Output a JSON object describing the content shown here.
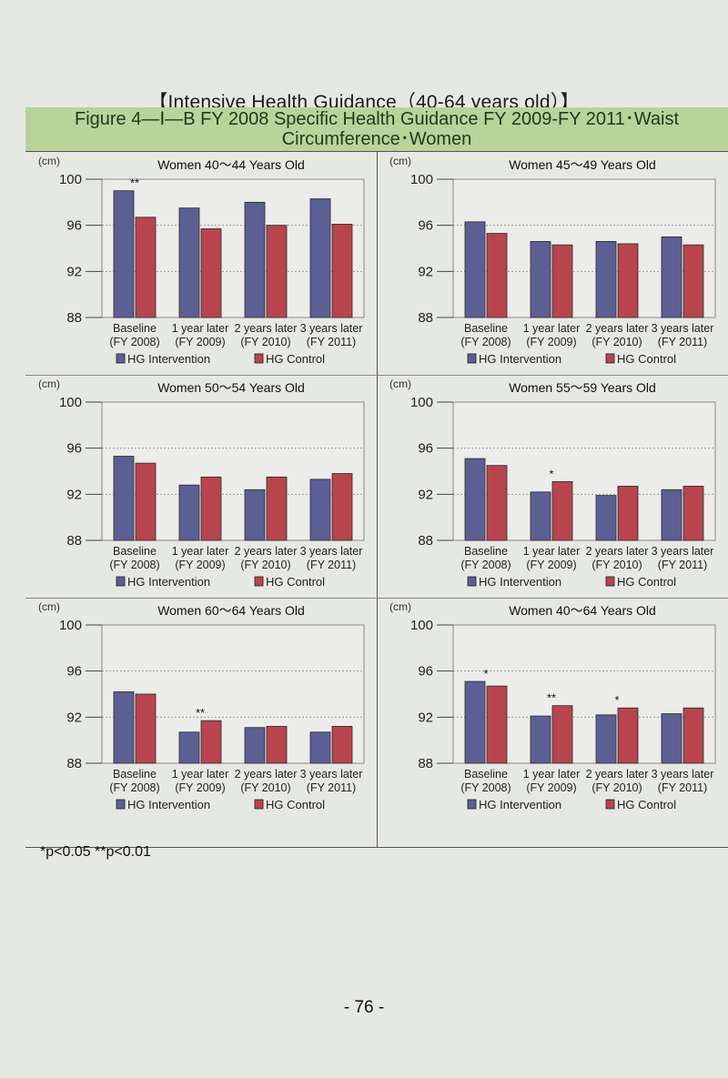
{
  "page_title": "【Intensive Health Guidance（40-64 years old）】",
  "figure_header": "Figure 4―Ⅰ―B  FY 2008 Specific Health Guidance FY 2009-FY 2011･Waist Circumference･Women",
  "footnote": "*p<0.05  **p<0.01",
  "page_number": "- 76 -",
  "colors": {
    "intervention": "#5b5f93",
    "control": "#b8444e",
    "panel_bg": "#ecedea"
  },
  "chart_data": [
    {
      "type": "bar",
      "title": "Women 40～44 Years Old",
      "ylabel": "(cm)",
      "ylim": [
        88,
        100
      ],
      "yticks": [
        "100",
        "96",
        "92",
        "88"
      ],
      "categories": [
        "Baseline",
        "1 year later",
        "2 years later",
        "3 years later"
      ],
      "category_sub": [
        "(FY 2008)",
        "(FY 2009)",
        "(FY 2010)",
        "(FY 2011)"
      ],
      "series": [
        {
          "name": "HG Intervention",
          "values": [
            99.0,
            97.5,
            98.0,
            98.3
          ]
        },
        {
          "name": "HG Control",
          "values": [
            96.7,
            95.7,
            96.0,
            96.1
          ]
        }
      ],
      "annotations": [
        "**",
        "",
        "",
        ""
      ],
      "grid": true,
      "legend": "bottom"
    },
    {
      "type": "bar",
      "title": "Women 45～49 Years Old",
      "ylabel": "(cm)",
      "ylim": [
        88,
        100
      ],
      "yticks": [
        "100",
        "96",
        "92",
        "88"
      ],
      "categories": [
        "Baseline",
        "1 year later",
        "2 years later",
        "3 years later"
      ],
      "category_sub": [
        "(FY 2008)",
        "(FY 2009)",
        "(FY 2010)",
        "(FY 2011)"
      ],
      "series": [
        {
          "name": "HG Intervention",
          "values": [
            96.3,
            94.6,
            94.6,
            95.0
          ]
        },
        {
          "name": "HG Control",
          "values": [
            95.3,
            94.3,
            94.4,
            94.3
          ]
        }
      ],
      "annotations": [
        "",
        "",
        "",
        ""
      ],
      "grid": true,
      "legend": "bottom"
    },
    {
      "type": "bar",
      "title": "Women 50～54 Years Old",
      "ylabel": "(cm)",
      "ylim": [
        88,
        100
      ],
      "yticks": [
        "100",
        "96",
        "92",
        "88"
      ],
      "categories": [
        "Baseline",
        "1 year later",
        "2 years later",
        "3 years later"
      ],
      "category_sub": [
        "(FY 2008)",
        "(FY 2009)",
        "(FY 2010)",
        "(FY 2011)"
      ],
      "series": [
        {
          "name": "HG Intervention",
          "values": [
            95.3,
            92.8,
            92.4,
            93.3
          ]
        },
        {
          "name": "HG Control",
          "values": [
            94.7,
            93.5,
            93.5,
            93.8
          ]
        }
      ],
      "annotations": [
        "",
        "",
        "",
        ""
      ],
      "grid": true,
      "legend": "bottom"
    },
    {
      "type": "bar",
      "title": "Women 55～59 Years Old",
      "ylabel": "(cm)",
      "ylim": [
        88,
        100
      ],
      "yticks": [
        "100",
        "96",
        "92",
        "88"
      ],
      "categories": [
        "Baseline",
        "1 year later",
        "2 years later",
        "3 years later"
      ],
      "category_sub": [
        "(FY 2008)",
        "(FY 2009)",
        "(FY 2010)",
        "(FY 2011)"
      ],
      "series": [
        {
          "name": "HG Intervention",
          "values": [
            95.1,
            92.2,
            91.9,
            92.4
          ]
        },
        {
          "name": "HG Control",
          "values": [
            94.5,
            93.1,
            92.7,
            92.7
          ]
        }
      ],
      "annotations": [
        "",
        "*",
        "",
        ""
      ],
      "grid": true,
      "legend": "bottom"
    },
    {
      "type": "bar",
      "title": "Women 60～64 Years Old",
      "ylabel": "(cm)",
      "ylim": [
        88,
        100
      ],
      "yticks": [
        "100",
        "96",
        "92",
        "88"
      ],
      "categories": [
        "Baseline",
        "1 year later",
        "2 years later",
        "3 years later"
      ],
      "category_sub": [
        "(FY 2008)",
        "(FY 2009)",
        "(FY 2010)",
        "(FY 2011)"
      ],
      "series": [
        {
          "name": "HG Intervention",
          "values": [
            94.2,
            90.7,
            91.1,
            90.7
          ]
        },
        {
          "name": "HG Control",
          "values": [
            94.0,
            91.7,
            91.2,
            91.2
          ]
        }
      ],
      "annotations": [
        "",
        "**",
        "",
        ""
      ],
      "grid": true,
      "legend": "bottom"
    },
    {
      "type": "bar",
      "title": "Women 40～64 Years Old",
      "ylabel": "(cm)",
      "ylim": [
        88,
        100
      ],
      "yticks": [
        "100",
        "96",
        "92",
        "88"
      ],
      "categories": [
        "Baseline",
        "1 year later",
        "2 years later",
        "3 years later"
      ],
      "category_sub": [
        "(FY 2008)",
        "(FY 2009)",
        "(FY 2010)",
        "(FY 2011)"
      ],
      "series": [
        {
          "name": "HG Intervention",
          "values": [
            95.1,
            92.1,
            92.2,
            92.3
          ]
        },
        {
          "name": "HG Control",
          "values": [
            94.7,
            93.0,
            92.8,
            92.8
          ]
        }
      ],
      "annotations": [
        "*",
        "**",
        "*",
        ""
      ],
      "grid": true,
      "legend": "bottom"
    }
  ]
}
